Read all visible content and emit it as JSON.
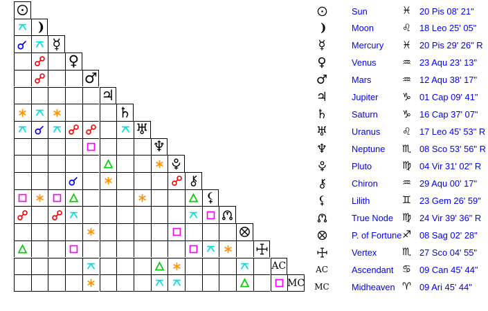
{
  "colors": {
    "background": "#ffffff",
    "grid_line": "#000000",
    "glyph_black": "#000000",
    "text_blue": "#0000ee",
    "aspect": {
      "conjunction": "#0000ee",
      "opposition": "#ff0000",
      "square": "#ff00ff",
      "trine": "#00cc00",
      "sextile": "#ff9300",
      "quincunx": "#00dddd"
    }
  },
  "grid": {
    "planets": [
      {
        "id": "sun",
        "symbol": "sun"
      },
      {
        "id": "moon",
        "symbol": "moon"
      },
      {
        "id": "mercury",
        "symbol": "mercury"
      },
      {
        "id": "venus",
        "symbol": "venus"
      },
      {
        "id": "mars",
        "symbol": "mars"
      },
      {
        "id": "jupiter",
        "symbol": "jupiter"
      },
      {
        "id": "saturn",
        "symbol": "saturn"
      },
      {
        "id": "uranus",
        "symbol": "uranus"
      },
      {
        "id": "neptune",
        "symbol": "neptune"
      },
      {
        "id": "pluto",
        "symbol": "pluto"
      },
      {
        "id": "chiron",
        "symbol": "chiron"
      },
      {
        "id": "lilith",
        "symbol": "lilith"
      },
      {
        "id": "true-node",
        "symbol": "true-node"
      },
      {
        "id": "fortune",
        "symbol": "fortune"
      },
      {
        "id": "vertex",
        "symbol": "vertex"
      },
      {
        "id": "ascendant",
        "symbol": "asc",
        "label": "AC"
      },
      {
        "id": "midheaven",
        "symbol": "mc",
        "label": "MC"
      }
    ],
    "aspects": [
      {
        "r": 1,
        "c": 0,
        "t": "quincunx"
      },
      {
        "r": 2,
        "c": 0,
        "t": "conjunction"
      },
      {
        "r": 2,
        "c": 1,
        "t": "quincunx"
      },
      {
        "r": 3,
        "c": 1,
        "t": "opposition"
      },
      {
        "r": 4,
        "c": 1,
        "t": "opposition"
      },
      {
        "r": 6,
        "c": 0,
        "t": "sextile"
      },
      {
        "r": 6,
        "c": 1,
        "t": "quincunx"
      },
      {
        "r": 6,
        "c": 2,
        "t": "sextile"
      },
      {
        "r": 7,
        "c": 0,
        "t": "quincunx"
      },
      {
        "r": 7,
        "c": 1,
        "t": "conjunction"
      },
      {
        "r": 7,
        "c": 2,
        "t": "quincunx"
      },
      {
        "r": 7,
        "c": 3,
        "t": "opposition"
      },
      {
        "r": 7,
        "c": 4,
        "t": "opposition"
      },
      {
        "r": 7,
        "c": 6,
        "t": "quincunx"
      },
      {
        "r": 8,
        "c": 4,
        "t": "square"
      },
      {
        "r": 9,
        "c": 5,
        "t": "trine"
      },
      {
        "r": 9,
        "c": 8,
        "t": "sextile"
      },
      {
        "r": 10,
        "c": 3,
        "t": "conjunction"
      },
      {
        "r": 10,
        "c": 5,
        "t": "sextile"
      },
      {
        "r": 10,
        "c": 9,
        "t": "opposition"
      },
      {
        "r": 11,
        "c": 0,
        "t": "square"
      },
      {
        "r": 11,
        "c": 1,
        "t": "sextile"
      },
      {
        "r": 11,
        "c": 2,
        "t": "square"
      },
      {
        "r": 11,
        "c": 3,
        "t": "trine"
      },
      {
        "r": 11,
        "c": 7,
        "t": "sextile"
      },
      {
        "r": 11,
        "c": 10,
        "t": "trine"
      },
      {
        "r": 12,
        "c": 0,
        "t": "opposition"
      },
      {
        "r": 12,
        "c": 2,
        "t": "opposition"
      },
      {
        "r": 12,
        "c": 3,
        "t": "quincunx"
      },
      {
        "r": 12,
        "c": 10,
        "t": "quincunx"
      },
      {
        "r": 12,
        "c": 11,
        "t": "square"
      },
      {
        "r": 13,
        "c": 4,
        "t": "sextile"
      },
      {
        "r": 13,
        "c": 9,
        "t": "square"
      },
      {
        "r": 14,
        "c": 0,
        "t": "trine"
      },
      {
        "r": 14,
        "c": 3,
        "t": "square"
      },
      {
        "r": 14,
        "c": 10,
        "t": "square"
      },
      {
        "r": 14,
        "c": 11,
        "t": "quincunx"
      },
      {
        "r": 14,
        "c": 12,
        "t": "sextile"
      },
      {
        "r": 15,
        "c": 4,
        "t": "quincunx"
      },
      {
        "r": 15,
        "c": 8,
        "t": "trine"
      },
      {
        "r": 15,
        "c": 9,
        "t": "sextile"
      },
      {
        "r": 15,
        "c": 13,
        "t": "quincunx"
      },
      {
        "r": 16,
        "c": 4,
        "t": "sextile"
      },
      {
        "r": 16,
        "c": 8,
        "t": "quincunx"
      },
      {
        "r": 16,
        "c": 9,
        "t": "quincunx"
      },
      {
        "r": 16,
        "c": 13,
        "t": "trine"
      },
      {
        "r": 16,
        "c": 15,
        "t": "square"
      }
    ]
  },
  "positions": {
    "rows": [
      {
        "id": "sun",
        "symbol": "sun",
        "name": "Sun",
        "sign": "pisces",
        "position": "20 Pis 08' 21\""
      },
      {
        "id": "moon",
        "symbol": "moon",
        "name": "Moon",
        "sign": "leo",
        "position": "18 Leo 25' 05\""
      },
      {
        "id": "mercury",
        "symbol": "mercury",
        "name": "Mercury",
        "sign": "pisces",
        "position": "20 Pis 29' 26\" R"
      },
      {
        "id": "venus",
        "symbol": "venus",
        "name": "Venus",
        "sign": "aquarius",
        "position": "23 Aqu 23' 13\""
      },
      {
        "id": "mars",
        "symbol": "mars",
        "name": "Mars",
        "sign": "aquarius",
        "position": "12 Aqu 38' 17\""
      },
      {
        "id": "jupiter",
        "symbol": "jupiter",
        "name": "Jupiter",
        "sign": "capricorn",
        "position": "01 Cap 09' 41\""
      },
      {
        "id": "saturn",
        "symbol": "saturn",
        "name": "Saturn",
        "sign": "capricorn",
        "position": "16 Cap 37' 07\""
      },
      {
        "id": "uranus",
        "symbol": "uranus",
        "name": "Uranus",
        "sign": "leo",
        "position": "17 Leo 45' 53\" R"
      },
      {
        "id": "neptune",
        "symbol": "neptune",
        "name": "Neptune",
        "sign": "scorpio",
        "position": "08 Sco 53' 56\" R"
      },
      {
        "id": "pluto",
        "symbol": "pluto",
        "name": "Pluto",
        "sign": "virgo",
        "position": "04 Vir 31' 02\" R"
      },
      {
        "id": "chiron",
        "symbol": "chiron",
        "name": "Chiron",
        "sign": "aquarius",
        "position": "29 Aqu 00' 17\""
      },
      {
        "id": "lilith",
        "symbol": "lilith",
        "name": "Lilith",
        "sign": "gemini",
        "position": "23 Gem 26' 59\""
      },
      {
        "id": "true-node",
        "symbol": "true-node",
        "name": "True Node",
        "sign": "virgo",
        "position": "24 Vir 39' 36\" R"
      },
      {
        "id": "fortune",
        "symbol": "fortune",
        "name": "P. of Fortune",
        "sign": "sagittarius",
        "position": "08 Sag 02' 28\""
      },
      {
        "id": "vertex",
        "symbol": "vertex",
        "name": "Vertex",
        "sign": "scorpio",
        "position": "27 Sco 04' 55\""
      },
      {
        "id": "ascendant",
        "symbol": "asc",
        "name": "Ascendant",
        "sign": "cancer",
        "position": "09 Can 45' 44\""
      },
      {
        "id": "midheaven",
        "symbol": "mc",
        "name": "Midheaven",
        "sign": "aries",
        "position": "09 Ari 45' 44\""
      }
    ]
  }
}
